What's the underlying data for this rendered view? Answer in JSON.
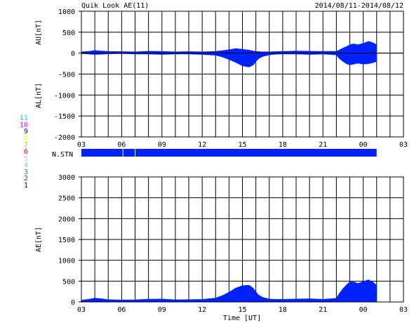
{
  "header": {
    "title": "Quik Look AE(11)",
    "date_range": "2014/08/11-2014/08/12"
  },
  "station_legend": [
    {
      "label": "11",
      "color": "#00e5e5"
    },
    {
      "label": "10",
      "color": "#ff00ff"
    },
    {
      "label": "9",
      "color": "#0000ff"
    },
    {
      "label": "8",
      "color": "#ffff00"
    },
    {
      "label": "7",
      "color": "#a0e000"
    },
    {
      "label": "6",
      "color": "#ff0000"
    },
    {
      "label": "5",
      "color": "#cfcfcf"
    },
    {
      "label": "4",
      "color": "#8fb8cf"
    },
    {
      "label": "3",
      "color": "#00a0a0"
    },
    {
      "label": "2",
      "color": "#a000a0"
    },
    {
      "label": "1",
      "color": "#0000a0"
    }
  ],
  "nstn": {
    "label": "N.STN",
    "bar_color": "#0022ff",
    "data_start_hour": 0,
    "data_end_hour": 22,
    "gaps_at_hour": [
      3.1,
      4.0
    ]
  },
  "chart_data": [
    {
      "type": "area",
      "title": "AU/AL",
      "panel": "upper",
      "ylabel_top": "AU[nT]",
      "ylabel_bottom": "AL[nT]",
      "ylim": [
        -2000,
        1000
      ],
      "yticks": [
        -2000,
        -1500,
        -1000,
        -500,
        0,
        500,
        1000
      ],
      "xlabel": "",
      "xlim": [
        0,
        24
      ],
      "xtick_labels": [
        "03",
        "06",
        "09",
        "12",
        "15",
        "18",
        "21",
        "00",
        "03"
      ],
      "grid": true,
      "color": "#0022ff",
      "series": [
        {
          "x": [
            0,
            0.5,
            1,
            1.5,
            2,
            3,
            4,
            5,
            6,
            7,
            8,
            9,
            10,
            10.5,
            11,
            11.5,
            12,
            12.5,
            12.8,
            13,
            13.2,
            13.5,
            14,
            14.5,
            15,
            15.5,
            16,
            17,
            18,
            19,
            19.2,
            19.5,
            19.8,
            20,
            20.3,
            20.6,
            21,
            21.4,
            21.7,
            22
          ],
          "y": [
            30,
            40,
            60,
            50,
            40,
            35,
            30,
            45,
            40,
            30,
            35,
            30,
            40,
            60,
            80,
            110,
            90,
            70,
            50,
            40,
            35,
            30,
            30,
            35,
            40,
            45,
            50,
            45,
            40,
            45,
            70,
            120,
            160,
            200,
            220,
            200,
            230,
            280,
            250,
            200
          ]
        },
        {
          "x": [
            0,
            0.5,
            1,
            1.5,
            2,
            3,
            4,
            5,
            6,
            7,
            8,
            9,
            10,
            10.5,
            11,
            11.5,
            12,
            12.5,
            12.8,
            13,
            13.2,
            13.5,
            14,
            14.5,
            15,
            15.5,
            16,
            17,
            18,
            19,
            19.2,
            19.5,
            19.8,
            20,
            20.3,
            20.6,
            21,
            21.4,
            21.7,
            22
          ],
          "y": [
            -10,
            -20,
            -30,
            -25,
            -15,
            -10,
            -20,
            -20,
            -30,
            -20,
            -20,
            -30,
            -50,
            -90,
            -150,
            -220,
            -300,
            -330,
            -280,
            -200,
            -130,
            -80,
            -40,
            -25,
            -20,
            -20,
            -20,
            -30,
            -20,
            -40,
            -120,
            -200,
            -260,
            -280,
            -260,
            -240,
            -260,
            -250,
            -230,
            -200
          ]
        }
      ]
    },
    {
      "type": "area",
      "title": "AE",
      "panel": "lower",
      "ylabel": "AE[nT]",
      "xlabel": "Time [UT]",
      "ylim": [
        0,
        3000
      ],
      "yticks": [
        0,
        500,
        1000,
        1500,
        2000,
        2500,
        3000
      ],
      "xlim": [
        0,
        24
      ],
      "xtick_labels": [
        "03",
        "06",
        "09",
        "12",
        "15",
        "18",
        "21",
        "00",
        "03"
      ],
      "grid": true,
      "color": "#0022ff",
      "series": [
        {
          "x": [
            0,
            0.5,
            1,
            1.5,
            2,
            3,
            4,
            5,
            6,
            7,
            8,
            9,
            10,
            10.5,
            11,
            11.5,
            12,
            12.5,
            12.8,
            13,
            13.2,
            13.5,
            14,
            14.5,
            15,
            15.5,
            16,
            17,
            18,
            19,
            19.2,
            19.5,
            19.8,
            20,
            20.3,
            20.6,
            21,
            21.4,
            21.7,
            22
          ],
          "y": [
            40,
            60,
            90,
            75,
            55,
            45,
            50,
            65,
            70,
            50,
            55,
            60,
            90,
            150,
            230,
            330,
            390,
            400,
            330,
            240,
            165,
            110,
            70,
            60,
            60,
            65,
            70,
            75,
            60,
            85,
            190,
            320,
            420,
            480,
            480,
            440,
            490,
            530,
            480,
            400
          ]
        }
      ]
    }
  ]
}
